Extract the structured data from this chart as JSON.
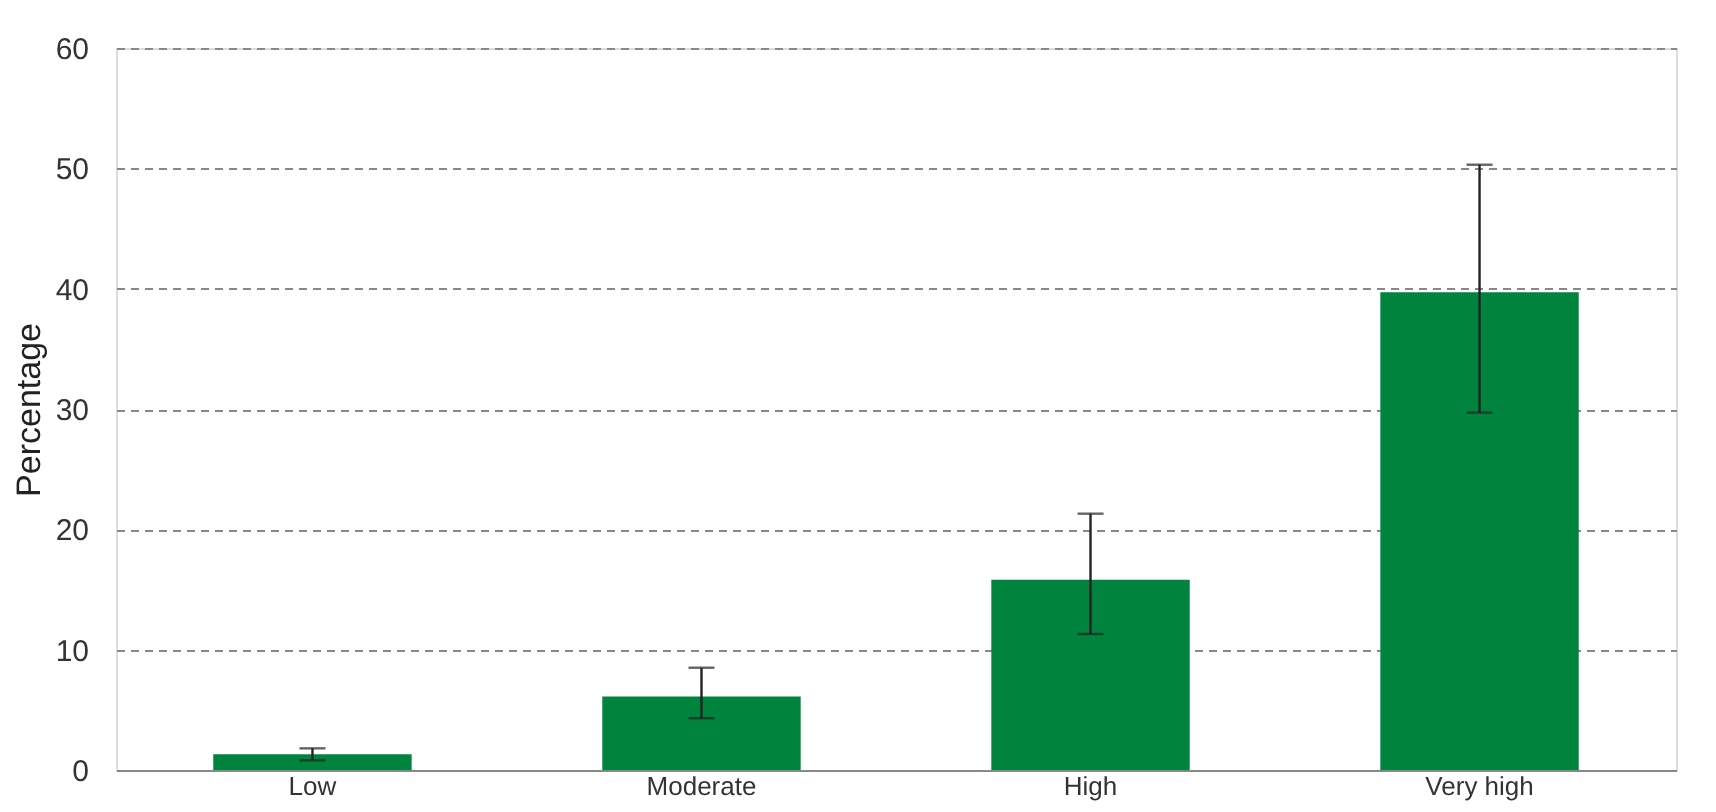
{
  "chart_data": {
    "type": "bar",
    "ylabel": "Percentage",
    "categories": [
      "Low",
      "Moderate",
      "High",
      "Very high"
    ],
    "values": [
      1.3,
      6.1,
      15.8,
      39.7
    ],
    "color": "#00843d",
    "errors": [
      [
        0.8,
        1.8
      ],
      [
        4.3,
        8.5
      ],
      [
        11.3,
        21.3
      ],
      [
        29.7,
        50.3
      ]
    ],
    "ylim": [
      0,
      60
    ],
    "yticks": [
      0,
      10,
      20,
      30,
      40,
      50,
      60
    ],
    "grid": "y"
  }
}
